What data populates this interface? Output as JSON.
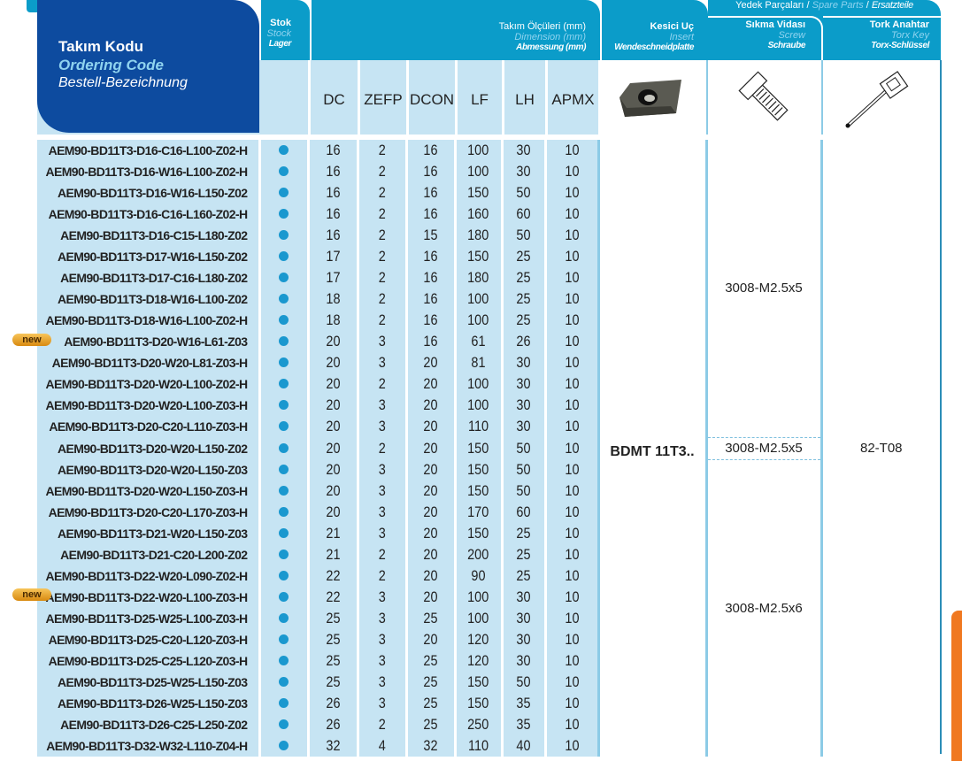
{
  "header": {
    "code": {
      "tr": "Takım Kodu",
      "en": "Ordering Code",
      "de": "Bestell-Bezeichnung"
    },
    "stock": {
      "tr": "Stok",
      "en": "Stock",
      "de": "Lager"
    },
    "dimensions": {
      "tr": "Takım Ölçüleri (mm)",
      "en": "Dimension (mm)",
      "de": "Abmessung (mm)"
    },
    "insert": {
      "tr": "Kesici Uç",
      "en": "Insert",
      "de": "Wendeschneidplatte"
    },
    "spare_parts": {
      "tr": "Yedek Parçaları",
      "en": "Spare Parts",
      "de": "Ersatzteile"
    },
    "screw": {
      "tr": "Sıkma Vidası",
      "en": "Screw",
      "de": "Schraube"
    },
    "key": {
      "tr": "Tork Anahtar",
      "en": "Torx Key",
      "de": "Torx-Schlüssel"
    },
    "columns": [
      "DC",
      "ZEFP",
      "DCON",
      "LF",
      "LH",
      "APMX"
    ]
  },
  "new_label": "new",
  "rows": [
    {
      "code": "AEM90-BD11T3-D16-C16-L100-Z02-H",
      "v": [
        "16",
        "2",
        "16",
        "100",
        "30",
        "10"
      ]
    },
    {
      "code": "AEM90-BD11T3-D16-W16-L100-Z02-H",
      "v": [
        "16",
        "2",
        "16",
        "100",
        "30",
        "10"
      ]
    },
    {
      "code": "AEM90-BD11T3-D16-W16-L150-Z02",
      "v": [
        "16",
        "2",
        "16",
        "150",
        "50",
        "10"
      ]
    },
    {
      "code": "AEM90-BD11T3-D16-C16-L160-Z02-H",
      "v": [
        "16",
        "2",
        "16",
        "160",
        "60",
        "10"
      ]
    },
    {
      "code": "AEM90-BD11T3-D16-C15-L180-Z02",
      "v": [
        "16",
        "2",
        "15",
        "180",
        "50",
        "10"
      ]
    },
    {
      "code": "AEM90-BD11T3-D17-W16-L150-Z02",
      "v": [
        "17",
        "2",
        "16",
        "150",
        "25",
        "10"
      ]
    },
    {
      "code": "AEM90-BD11T3-D17-C16-L180-Z02",
      "v": [
        "17",
        "2",
        "16",
        "180",
        "25",
        "10"
      ]
    },
    {
      "code": "AEM90-BD11T3-D18-W16-L100-Z02",
      "v": [
        "18",
        "2",
        "16",
        "100",
        "25",
        "10"
      ]
    },
    {
      "code": "AEM90-BD11T3-D18-W16-L100-Z02-H",
      "v": [
        "18",
        "2",
        "16",
        "100",
        "25",
        "10"
      ]
    },
    {
      "code": "AEM90-BD11T3-D20-W16-L61-Z03",
      "v": [
        "20",
        "3",
        "16",
        "61",
        "26",
        "10"
      ],
      "new": true
    },
    {
      "code": "AEM90-BD11T3-D20-W20-L81-Z03-H",
      "v": [
        "20",
        "3",
        "20",
        "81",
        "30",
        "10"
      ]
    },
    {
      "code": "AEM90-BD11T3-D20-W20-L100-Z02-H",
      "v": [
        "20",
        "2",
        "20",
        "100",
        "30",
        "10"
      ]
    },
    {
      "code": "AEM90-BD11T3-D20-W20-L100-Z03-H",
      "v": [
        "20",
        "3",
        "20",
        "100",
        "30",
        "10"
      ]
    },
    {
      "code": "AEM90-BD11T3-D20-C20-L110-Z03-H",
      "v": [
        "20",
        "3",
        "20",
        "110",
        "30",
        "10"
      ]
    },
    {
      "code": "AEM90-BD11T3-D20-W20-L150-Z02",
      "v": [
        "20",
        "2",
        "20",
        "150",
        "50",
        "10"
      ]
    },
    {
      "code": "AEM90-BD11T3-D20-W20-L150-Z03",
      "v": [
        "20",
        "3",
        "20",
        "150",
        "50",
        "10"
      ]
    },
    {
      "code": "AEM90-BD11T3-D20-W20-L150-Z03-H",
      "v": [
        "20",
        "3",
        "20",
        "150",
        "50",
        "10"
      ]
    },
    {
      "code": "AEM90-BD11T3-D20-C20-L170-Z03-H",
      "v": [
        "20",
        "3",
        "20",
        "170",
        "60",
        "10"
      ]
    },
    {
      "code": "AEM90-BD11T3-D21-W20-L150-Z03",
      "v": [
        "21",
        "3",
        "20",
        "150",
        "25",
        "10"
      ]
    },
    {
      "code": "AEM90-BD11T3-D21-C20-L200-Z02",
      "v": [
        "21",
        "2",
        "20",
        "200",
        "25",
        "10"
      ]
    },
    {
      "code": "AEM90-BD11T3-D22-W20-L090-Z02-H",
      "v": [
        "22",
        "2",
        "20",
        "90",
        "25",
        "10"
      ]
    },
    {
      "code": "AEM90-BD11T3-D22-W20-L100-Z03-H",
      "v": [
        "22",
        "3",
        "20",
        "100",
        "30",
        "10"
      ],
      "new": true
    },
    {
      "code": "AEM90-BD11T3-D25-W25-L100-Z03-H",
      "v": [
        "25",
        "3",
        "25",
        "100",
        "30",
        "10"
      ]
    },
    {
      "code": "AEM90-BD11T3-D25-C20-L120-Z03-H",
      "v": [
        "25",
        "3",
        "20",
        "120",
        "30",
        "10"
      ]
    },
    {
      "code": "AEM90-BD11T3-D25-C25-L120-Z03-H",
      "v": [
        "25",
        "3",
        "25",
        "120",
        "30",
        "10"
      ]
    },
    {
      "code": "AEM90-BD11T3-D25-W25-L150-Z03",
      "v": [
        "25",
        "3",
        "25",
        "150",
        "50",
        "10"
      ]
    },
    {
      "code": "AEM90-BD11T3-D26-W25-L150-Z03",
      "v": [
        "26",
        "3",
        "25",
        "150",
        "35",
        "10"
      ]
    },
    {
      "code": "AEM90-BD11T3-D26-C25-L250-Z02",
      "v": [
        "26",
        "2",
        "25",
        "250",
        "35",
        "10"
      ]
    },
    {
      "code": "AEM90-BD11T3-D32-W32-L110-Z04-H",
      "v": [
        "32",
        "4",
        "32",
        "110",
        "40",
        "10"
      ]
    }
  ],
  "insert_value": "BDMT 11T3..",
  "screw_groups": [
    {
      "value": "3008-M2.5x5",
      "rows": 14
    },
    {
      "value": "3008-M2.5x5",
      "rows": 1
    },
    {
      "value": "3008-M2.5x6",
      "rows": 14
    }
  ],
  "key_value": "82-T08",
  "colors": {
    "header_teal": "#0b9cc9",
    "code_blue": "#0d4b9f",
    "row_bg": "#c6e4f3",
    "stock_dot": "#1a98cf",
    "side_tab": "#f07820"
  }
}
